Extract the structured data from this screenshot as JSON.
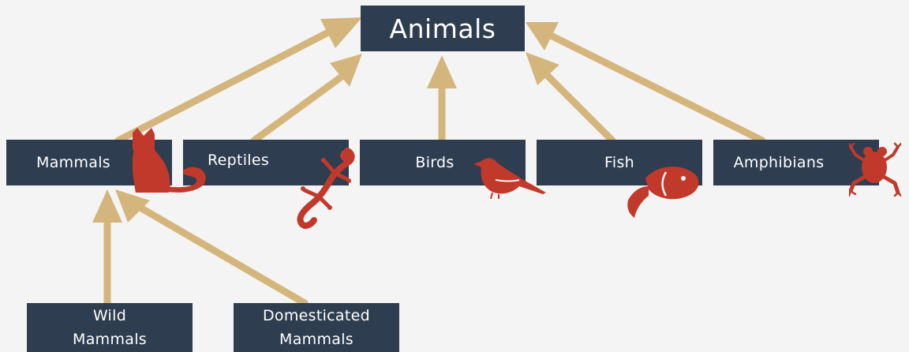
{
  "diagram": {
    "root": {
      "label": "Animals"
    },
    "classes": [
      {
        "id": "mammals",
        "label": "Mammals",
        "icon": "cat-icon"
      },
      {
        "id": "reptiles",
        "label": "Reptiles",
        "icon": "lizard-icon"
      },
      {
        "id": "birds",
        "label": "Birds",
        "icon": "bird-icon"
      },
      {
        "id": "fish",
        "label": "Fish",
        "icon": "fish-icon"
      },
      {
        "id": "amphibians",
        "label": "Amphibians",
        "icon": "frog-icon"
      }
    ],
    "subclasses": [
      {
        "id": "wild-mammals",
        "label": "Wild\nMammals",
        "parent": "mammals"
      },
      {
        "id": "domesticated-mammals",
        "label": "Domesticated\nMammals",
        "parent": "mammals"
      }
    ],
    "colors": {
      "node_fill": "#2e3d4f",
      "node_text": "#ffffff",
      "arrow": "#d4b67c",
      "icon": "#c0392b",
      "background": "#f4f4f4"
    }
  }
}
